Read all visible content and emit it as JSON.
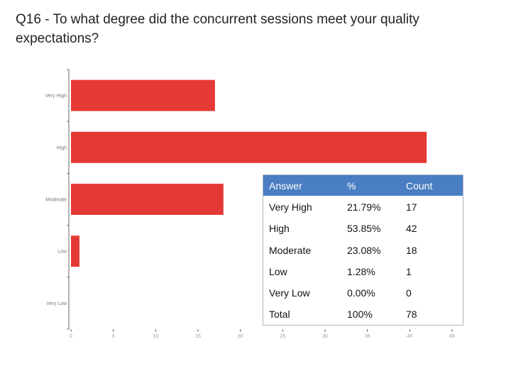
{
  "title": "Q16 - To what degree did the concurrent sessions meet your quality expectations?",
  "chart_data": {
    "type": "bar",
    "orientation": "horizontal",
    "categories": [
      "Very High",
      "High",
      "Moderate",
      "Low",
      "Very Low"
    ],
    "values": [
      17,
      42,
      18,
      1,
      0
    ],
    "xticks": [
      0,
      5,
      10,
      15,
      20,
      25,
      30,
      35,
      40,
      45
    ],
    "xlim": [
      0,
      45
    ],
    "bar_color": "#e53935",
    "grid": false
  },
  "table": {
    "headers": [
      "Answer",
      "%",
      "Count"
    ],
    "rows": [
      [
        "Very High",
        "21.79%",
        "17"
      ],
      [
        "High",
        "53.85%",
        "42"
      ],
      [
        "Moderate",
        "23.08%",
        "18"
      ],
      [
        "Low",
        "1.28%",
        "1"
      ],
      [
        "Very Low",
        "0.00%",
        "0"
      ],
      [
        "Total",
        "100%",
        "78"
      ]
    ],
    "header_color": "#4a7ec2"
  }
}
